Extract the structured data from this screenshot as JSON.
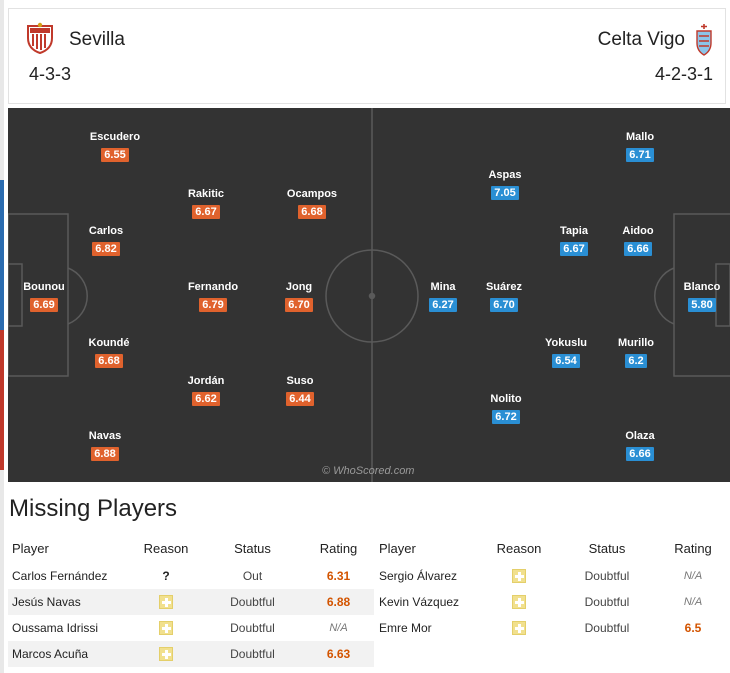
{
  "header": {
    "home": {
      "name": "Sevilla",
      "formation": "4-3-3",
      "crest": "sevilla-crest-icon"
    },
    "away": {
      "name": "Celta Vigo",
      "formation": "4-2-3-1",
      "crest": "celta-crest-icon"
    }
  },
  "pitch": {
    "watermark": "© WhoScored.com",
    "home_players": [
      {
        "name": "Escudero",
        "rating": "6.55"
      },
      {
        "name": "Rakitic",
        "rating": "6.67"
      },
      {
        "name": "Ocampos",
        "rating": "6.68"
      },
      {
        "name": "Carlos",
        "rating": "6.82"
      },
      {
        "name": "Bounou",
        "rating": "6.69"
      },
      {
        "name": "Fernando",
        "rating": "6.79"
      },
      {
        "name": "Jong",
        "rating": "6.70"
      },
      {
        "name": "Koundé",
        "rating": "6.68"
      },
      {
        "name": "Jordán",
        "rating": "6.62"
      },
      {
        "name": "Suso",
        "rating": "6.44"
      },
      {
        "name": "Navas",
        "rating": "6.88"
      }
    ],
    "away_players": [
      {
        "name": "Mallo",
        "rating": "6.71"
      },
      {
        "name": "Aspas",
        "rating": "7.05"
      },
      {
        "name": "Tapia",
        "rating": "6.67"
      },
      {
        "name": "Aidoo",
        "rating": "6.66"
      },
      {
        "name": "Mina",
        "rating": "6.27"
      },
      {
        "name": "Suárez",
        "rating": "6.70"
      },
      {
        "name": "Blanco",
        "rating": "5.80"
      },
      {
        "name": "Yokuslu",
        "rating": "6.54"
      },
      {
        "name": "Murillo",
        "rating": "6.2"
      },
      {
        "name": "Nolito",
        "rating": "6.72"
      },
      {
        "name": "Olaza",
        "rating": "6.66"
      }
    ],
    "colors": {
      "home_rating": "#e0622d",
      "away_rating": "#2a8fd4",
      "pitch": "#333333"
    }
  },
  "missing": {
    "title": "Missing Players",
    "columns": [
      "Player",
      "Reason",
      "Status",
      "Rating"
    ],
    "home": [
      {
        "player": "Carlos Fernández",
        "reason": "unknown-icon",
        "reason_text": "?",
        "status": "Out",
        "rating": "6.31"
      },
      {
        "player": "Jesús Navas",
        "reason": "injury-icon",
        "status": "Doubtful",
        "rating": "6.88"
      },
      {
        "player": "Oussama Idrissi",
        "reason": "injury-icon",
        "status": "Doubtful",
        "rating": "N/A"
      },
      {
        "player": "Marcos Acuña",
        "reason": "injury-icon",
        "status": "Doubtful",
        "rating": "6.63"
      }
    ],
    "away": [
      {
        "player": "Sergio Álvarez",
        "reason": "injury-icon",
        "status": "Doubtful",
        "rating": "N/A"
      },
      {
        "player": "Kevin Vázquez",
        "reason": "injury-icon",
        "status": "Doubtful",
        "rating": "N/A"
      },
      {
        "player": "Emre Mor",
        "reason": "injury-icon",
        "status": "Doubtful",
        "rating": "6.5"
      }
    ]
  }
}
